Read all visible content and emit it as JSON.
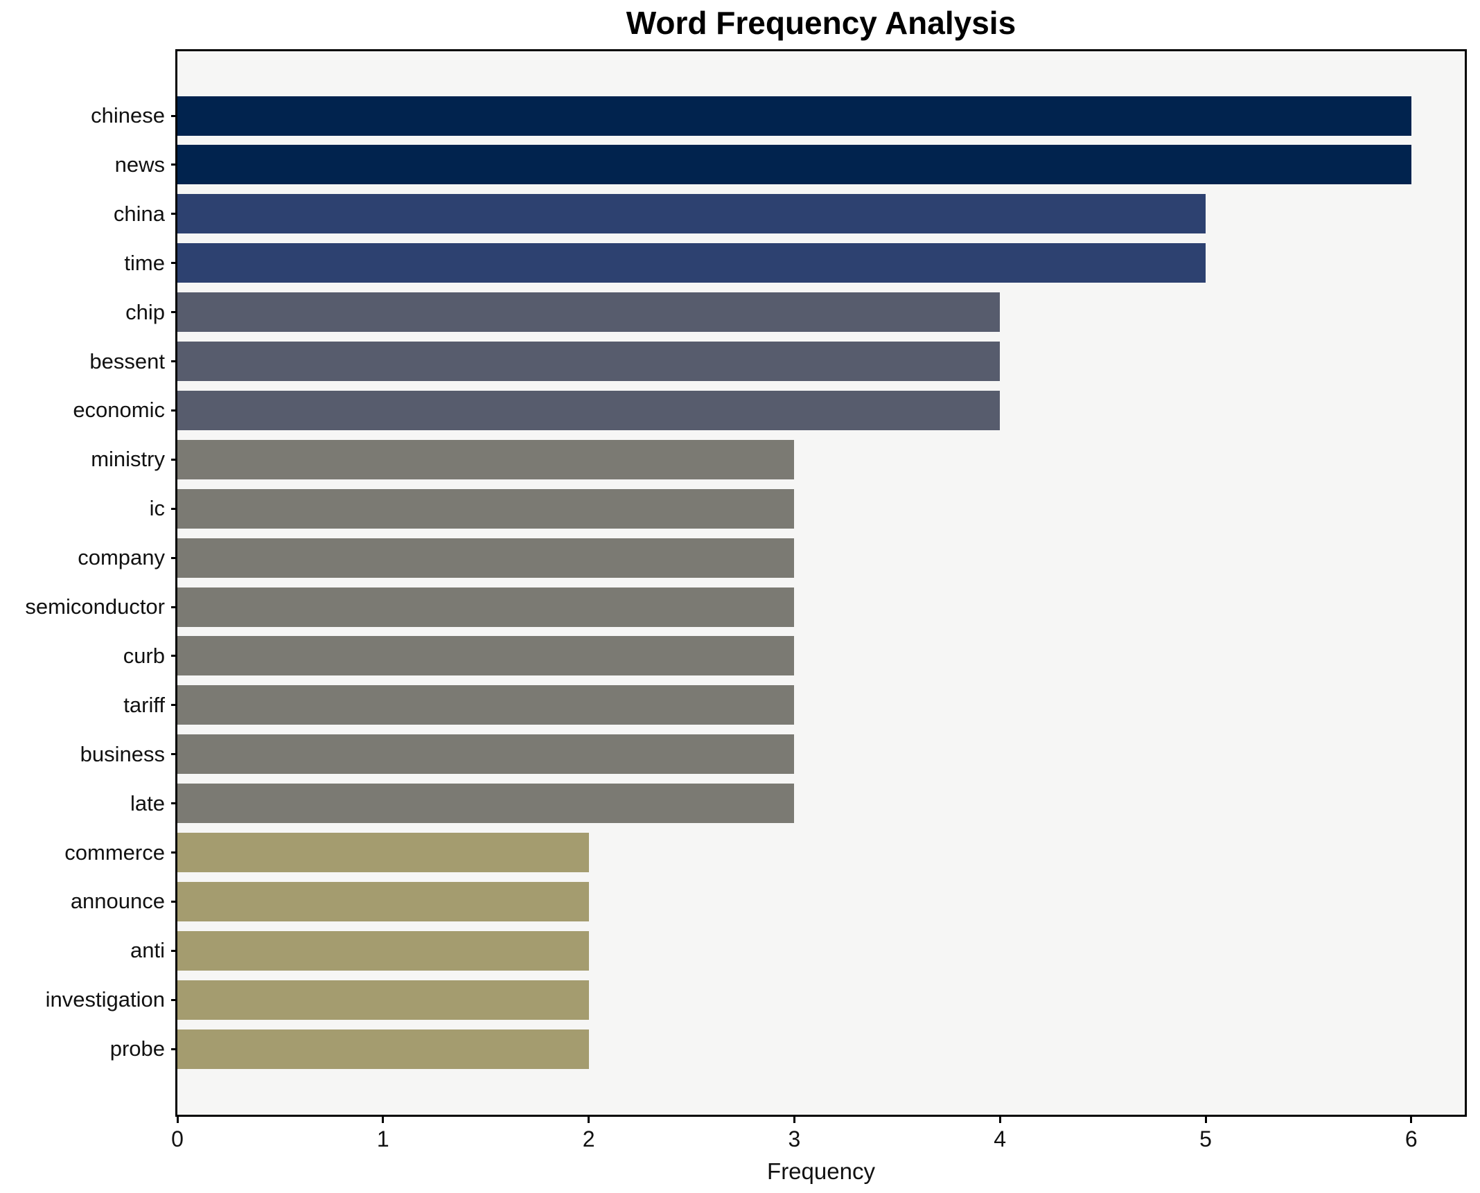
{
  "chart_data": {
    "type": "bar",
    "orientation": "horizontal",
    "title": "Word Frequency Analysis",
    "xlabel": "Frequency",
    "ylabel": "",
    "categories": [
      "chinese",
      "news",
      "china",
      "time",
      "chip",
      "bessent",
      "economic",
      "ministry",
      "ic",
      "company",
      "semiconductor",
      "curb",
      "tariff",
      "business",
      "late",
      "commerce",
      "announce",
      "anti",
      "investigation",
      "probe"
    ],
    "values": [
      6,
      6,
      5,
      5,
      4,
      4,
      4,
      3,
      3,
      3,
      3,
      3,
      3,
      3,
      3,
      2,
      2,
      2,
      2,
      2
    ],
    "x_ticks": [
      "0",
      "1",
      "2",
      "3",
      "4",
      "5",
      "6"
    ],
    "xlim": [
      0,
      6.27
    ],
    "grid": false,
    "legend": null,
    "colors": {
      "figure_bg": "#ffffff",
      "plot_bg": "#f6f6f5",
      "spine": "#000000",
      "text": "#111111",
      "value_color_map": {
        "6": "#01234e",
        "5": "#2d4170",
        "4": "#575c6d",
        "3": "#7b7a73",
        "2": "#a49c6f"
      }
    }
  }
}
